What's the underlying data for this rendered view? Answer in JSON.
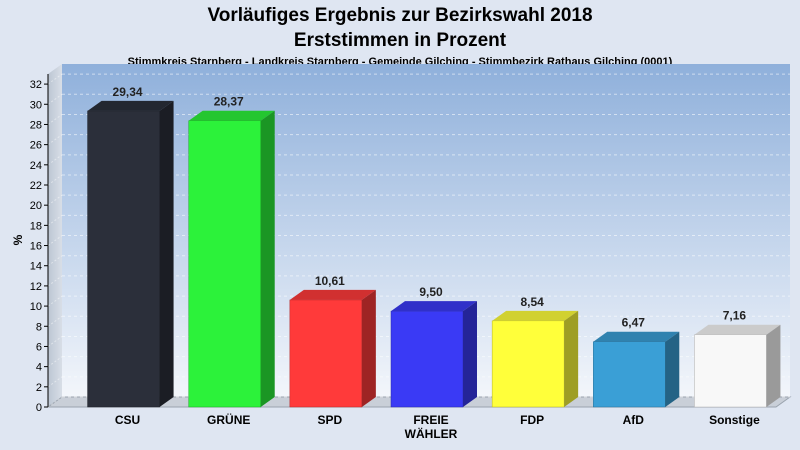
{
  "chart_data": {
    "type": "bar",
    "title_line1": "Vorläufiges Ergebnis zur Bezirkswahl 2018",
    "title_line2": "Erststimmen in Prozent",
    "subtitle": "Stimmkreis Starnberg - Landkreis Starnberg - Gemeinde Gilching - Stimmbezirk Rathaus Gilching (0001)",
    "ylabel": "%",
    "xlabel": "",
    "ylim": [
      0,
      33
    ],
    "yticks": [
      0,
      2,
      4,
      6,
      8,
      10,
      12,
      14,
      16,
      18,
      20,
      22,
      24,
      26,
      28,
      30,
      32
    ],
    "grid": true,
    "categories": [
      [
        "CSU"
      ],
      [
        "GRÜNE"
      ],
      [
        "SPD"
      ],
      [
        "FREIE",
        "WÄHLER"
      ],
      [
        "FDP"
      ],
      [
        "AfD"
      ],
      [
        "Sonstige"
      ]
    ],
    "values": [
      29.34,
      28.37,
      10.61,
      9.5,
      8.54,
      6.47,
      7.16
    ],
    "value_labels": [
      "29,34",
      "28,37",
      "10,61",
      "9,50",
      "8,54",
      "6,47",
      "7,16"
    ],
    "colors": [
      "#2b2f3a",
      "#2cf23a",
      "#ff3a3a",
      "#3a3af5",
      "#ffff3a",
      "#3a9fd6",
      "#f8f8f8"
    ]
  }
}
